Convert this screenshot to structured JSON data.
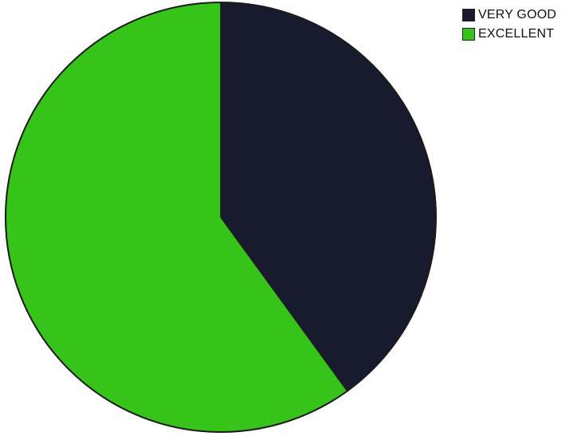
{
  "chart_data": {
    "type": "pie",
    "title": "",
    "legend_position": "top-right",
    "start_angle_deg": 0,
    "direction": "clockwise",
    "slices": [
      {
        "label": "VERY GOOD",
        "value": 40,
        "color": "#181a2e"
      },
      {
        "label": "EXCELLENT",
        "value": 60,
        "color": "#37c41a"
      }
    ]
  }
}
